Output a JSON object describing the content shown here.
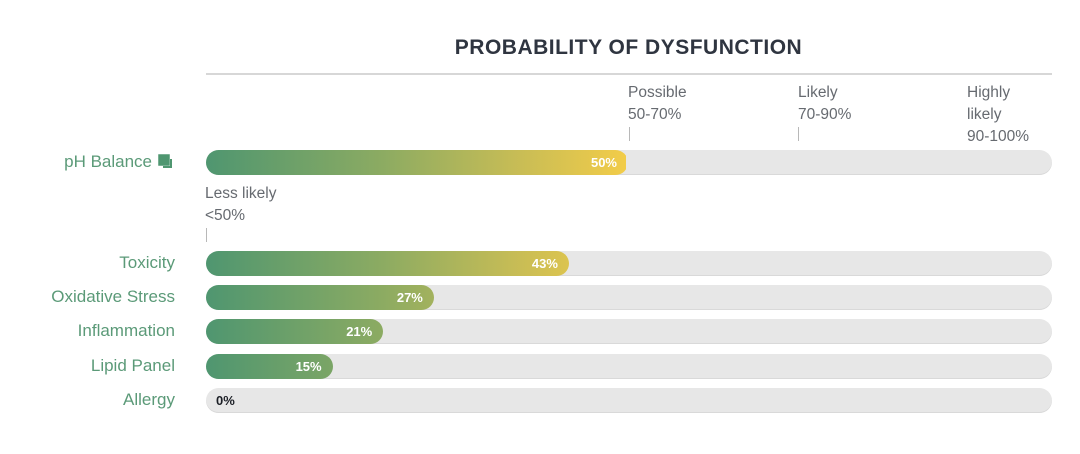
{
  "chart_data": {
    "type": "bar",
    "orientation": "horizontal",
    "title": "PROBABILITY OF DYSFUNCTION",
    "xlim": [
      0,
      100
    ],
    "categories": [
      "pH Balance",
      "Toxicity",
      "Oxidative Stress",
      "Inflammation",
      "Lipid Panel",
      "Allergy"
    ],
    "values": [
      50,
      43,
      27,
      21,
      15,
      0
    ],
    "value_labels": [
      "50%",
      "43%",
      "27%",
      "21%",
      "15%",
      "0%"
    ],
    "thresholds": [
      {
        "name": "Less likely",
        "range": "<50%",
        "at": 0
      },
      {
        "name": "Possible",
        "range": "50-70%",
        "at": 50
      },
      {
        "name": "Likely",
        "range": "70-90%",
        "at": 70
      },
      {
        "name": "Highly likely",
        "range": "90-100%",
        "at": 90
      }
    ],
    "colors": {
      "gradient_start": "#4f9670",
      "gradient_end": "#f2cc49",
      "track": "#e7e7e7",
      "label": "#5b9a78"
    },
    "grid": false
  },
  "icons": {
    "ph_balance": "external-link-icon"
  }
}
